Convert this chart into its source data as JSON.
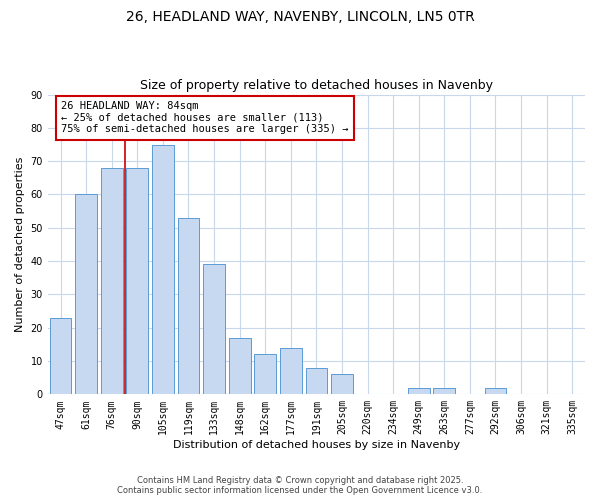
{
  "title1": "26, HEADLAND WAY, NAVENBY, LINCOLN, LN5 0TR",
  "title2": "Size of property relative to detached houses in Navenby",
  "xlabel": "Distribution of detached houses by size in Navenby",
  "ylabel": "Number of detached properties",
  "categories": [
    "47sqm",
    "61sqm",
    "76sqm",
    "90sqm",
    "105sqm",
    "119sqm",
    "133sqm",
    "148sqm",
    "162sqm",
    "177sqm",
    "191sqm",
    "205sqm",
    "220sqm",
    "234sqm",
    "249sqm",
    "263sqm",
    "277sqm",
    "292sqm",
    "306sqm",
    "321sqm",
    "335sqm"
  ],
  "values": [
    23,
    60,
    68,
    68,
    75,
    53,
    39,
    17,
    12,
    14,
    8,
    6,
    0,
    0,
    2,
    2,
    0,
    2,
    0,
    0,
    0
  ],
  "bar_color": "#c6d9f0",
  "bar_edge_color": "#5b9bd5",
  "vline_pos": 2.5,
  "vline_color": "#cc0000",
  "annotation_text": "26 HEADLAND WAY: 84sqm\n← 25% of detached houses are smaller (113)\n75% of semi-detached houses are larger (335) →",
  "ylim": [
    0,
    90
  ],
  "yticks": [
    0,
    10,
    20,
    30,
    40,
    50,
    60,
    70,
    80,
    90
  ],
  "background_color": "#ffffff",
  "grid_color": "#c8d8ea",
  "footer1": "Contains HM Land Registry data © Crown copyright and database right 2025.",
  "footer2": "Contains public sector information licensed under the Open Government Licence v3.0.",
  "title_fontsize": 10,
  "subtitle_fontsize": 9,
  "axis_label_fontsize": 8,
  "tick_fontsize": 7,
  "annotation_fontsize": 7.5
}
